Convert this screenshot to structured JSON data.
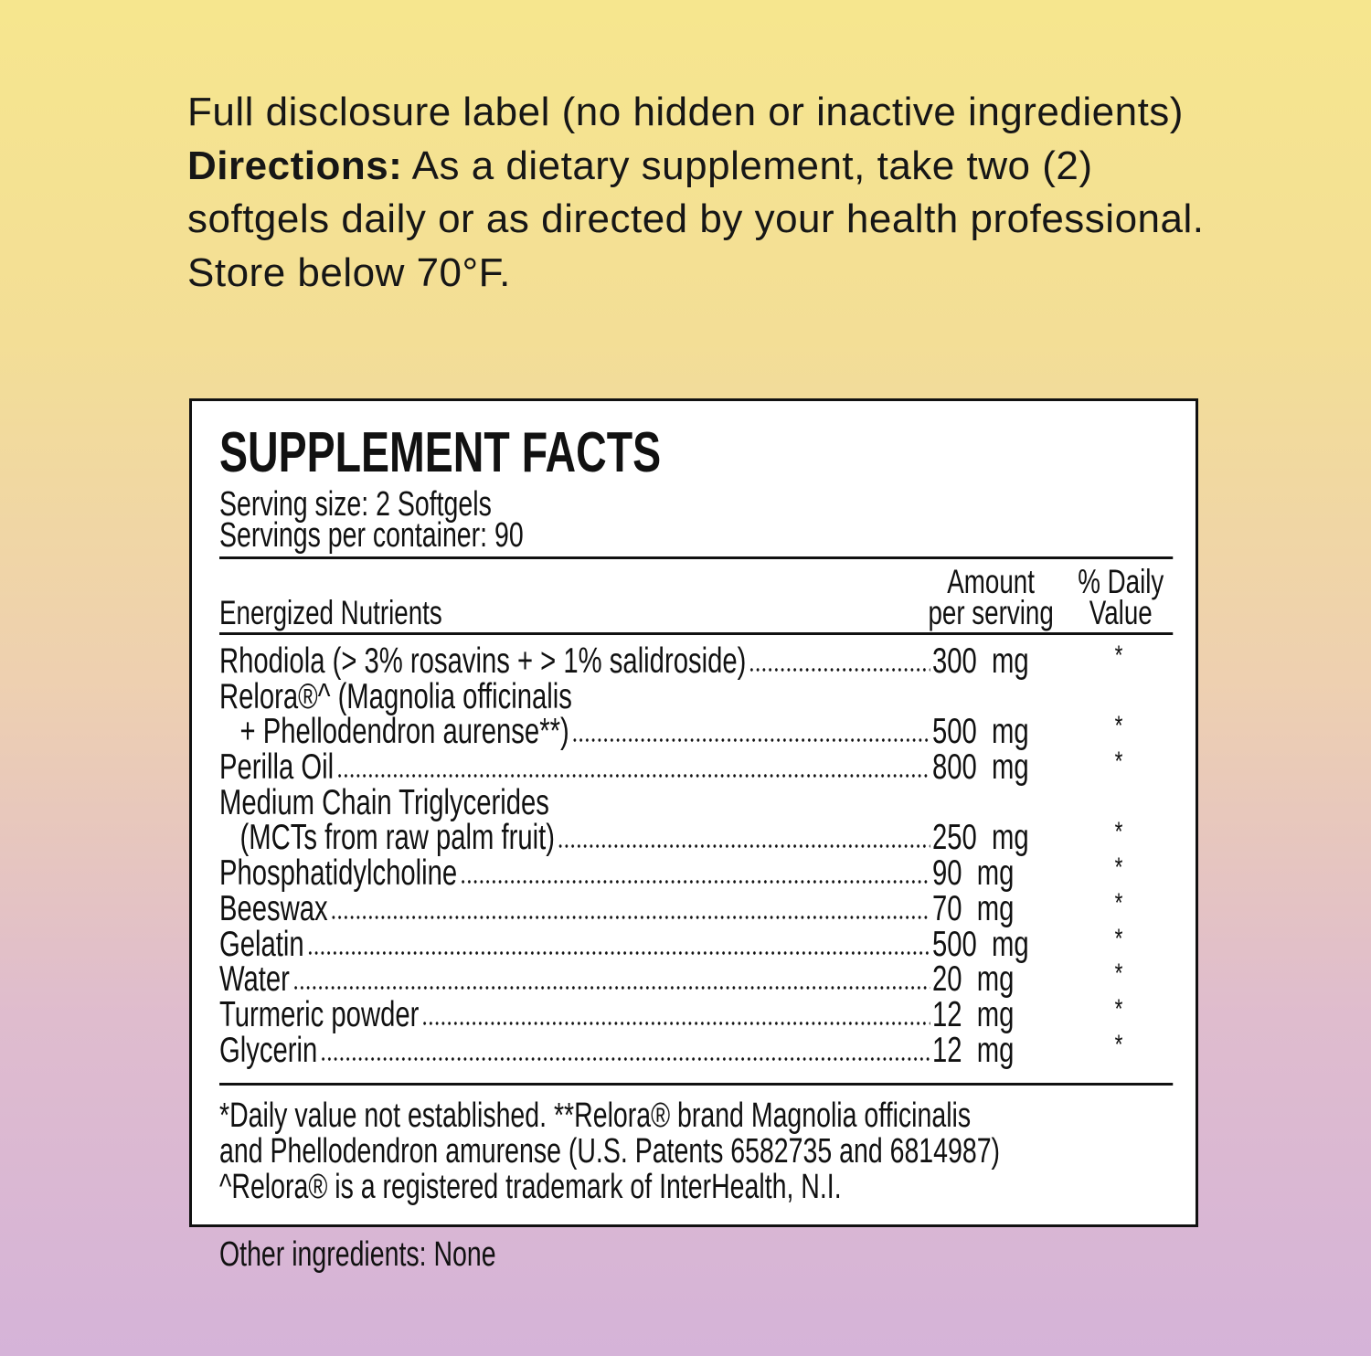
{
  "intro": {
    "disclosure": "Full disclosure label (no hidden or inactive ingredients)",
    "directions_label": "Directions:",
    "directions_text": "As a dietary supplement, take two (2) softgels daily or as directed by your health professional. Store below 70°F."
  },
  "facts": {
    "title": "SUPPLEMENT FACTS",
    "serving_size": "Serving size:  2 Softgels",
    "servings_per_container": "Servings per container:  90",
    "header": {
      "nutrients": "Energized Nutrients",
      "amount_line1": "Amount",
      "amount_line2": "per serving",
      "dv_line1": "% Daily",
      "dv_line2": "Value"
    },
    "rows": [
      {
        "name": "Rhodiola (> 3% rosavins + > 1% salidroside)",
        "amount": "300  mg",
        "dv": "*"
      },
      {
        "name": "Relora®^ (Magnolia officinalis",
        "amount": "",
        "dv": ""
      },
      {
        "name": "+ Phellodendron aurense**)",
        "amount": "500  mg",
        "dv": "*"
      },
      {
        "name": "Perilla Oil",
        "amount": "800  mg",
        "dv": "*"
      },
      {
        "name": "Medium Chain Triglycerides",
        "amount": "",
        "dv": ""
      },
      {
        "name": "(MCTs from raw palm fruit)",
        "amount": "250  mg",
        "dv": "*"
      },
      {
        "name": "Phosphatidylcholine",
        "amount": "90  mg",
        "dv": "*"
      },
      {
        "name": "Beeswax",
        "amount": "70  mg",
        "dv": "*"
      },
      {
        "name": "Gelatin",
        "amount": "500  mg",
        "dv": "*"
      },
      {
        "name": "Water",
        "amount": "20  mg",
        "dv": "*"
      },
      {
        "name": "Turmeric powder",
        "amount": "12  mg",
        "dv": "*"
      },
      {
        "name": "Glycerin",
        "amount": "12  mg",
        "dv": "*"
      }
    ],
    "footnotes": [
      "*Daily value not established.   **Relora® brand Magnolia officinalis",
      "and Phellodendron amurense (U.S. Patents 6582735 and 6814987)",
      "^Relora® is a registered trademark of InterHealth, N.I."
    ]
  },
  "other_ingredients": "Other ingredients: None"
}
